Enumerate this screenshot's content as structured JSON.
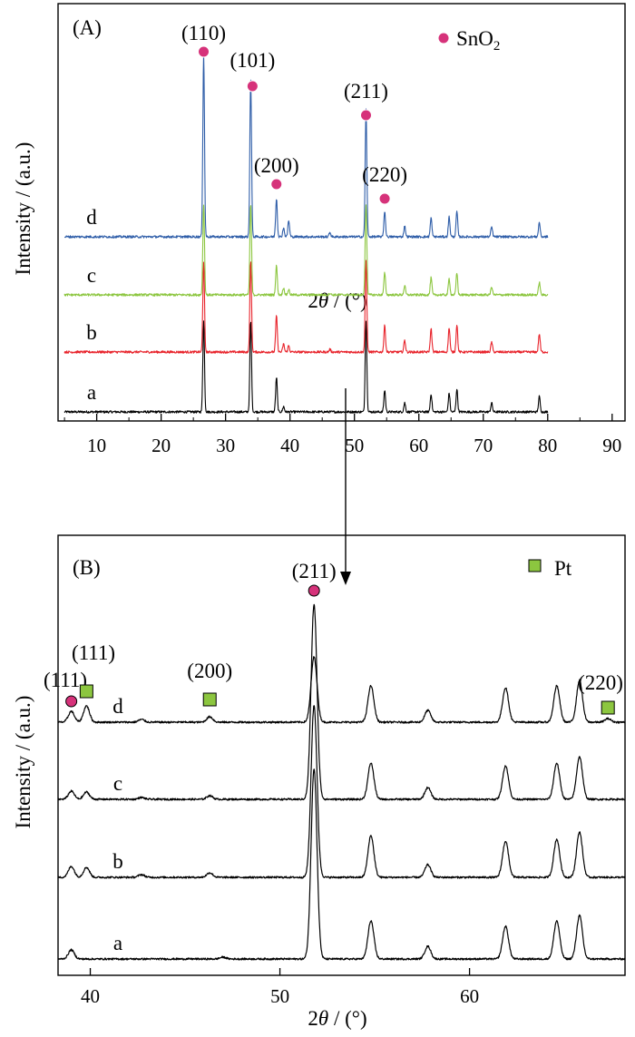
{
  "chart_data": [
    {
      "type": "line",
      "panel_label": "(A)",
      "xlabel_prefix": "2",
      "xlabel_symbol": "θ",
      "xlabel_suffix": " / (°)",
      "ylabel": "Intensity / (a.u.)",
      "xlim": [
        4,
        92
      ],
      "xticks": [
        10,
        20,
        30,
        40,
        50,
        60,
        70,
        80,
        90
      ],
      "data_range": [
        5,
        80
      ],
      "legend": {
        "text": "SnO",
        "sub": "2",
        "color": "#d6327a"
      },
      "peak_labels": [
        {
          "text": "(110)",
          "x": 26.6
        },
        {
          "text": "(101)",
          "x": 33.9
        },
        {
          "text": "(200)",
          "x": 37.9
        },
        {
          "text": "(211)",
          "x": 51.8
        },
        {
          "text": "(220)",
          "x": 54.7
        }
      ],
      "series": [
        {
          "name": "a",
          "color": "#000000",
          "peaks": [
            [
              26.6,
              100
            ],
            [
              33.9,
              100
            ],
            [
              37.9,
              38
            ],
            [
              39.0,
              6
            ],
            [
              51.8,
              100
            ],
            [
              54.7,
              24
            ],
            [
              57.8,
              10
            ],
            [
              61.9,
              20
            ],
            [
              64.7,
              21
            ],
            [
              65.9,
              25
            ],
            [
              71.3,
              10
            ],
            [
              78.7,
              17
            ]
          ]
        },
        {
          "name": "b",
          "color": "#e8232b",
          "peaks": [
            [
              26.6,
              100
            ],
            [
              33.9,
              100
            ],
            [
              37.9,
              40
            ],
            [
              39.0,
              9
            ],
            [
              39.8,
              7
            ],
            [
              46.2,
              3
            ],
            [
              51.8,
              100
            ],
            [
              54.7,
              29
            ],
            [
              57.8,
              13
            ],
            [
              61.9,
              26
            ],
            [
              64.7,
              27
            ],
            [
              65.9,
              30
            ],
            [
              71.3,
              11
            ],
            [
              78.7,
              20
            ]
          ]
        },
        {
          "name": "c",
          "color": "#8cc63f",
          "peaks": [
            [
              26.6,
              100
            ],
            [
              33.9,
              100
            ],
            [
              37.9,
              32
            ],
            [
              39.0,
              8
            ],
            [
              39.8,
              6
            ],
            [
              46.2,
              2
            ],
            [
              51.8,
              100
            ],
            [
              54.7,
              24
            ],
            [
              57.8,
              10
            ],
            [
              61.9,
              19
            ],
            [
              64.7,
              18
            ],
            [
              65.9,
              24
            ],
            [
              71.3,
              9
            ],
            [
              78.7,
              14
            ]
          ]
        },
        {
          "name": "d",
          "color": "#2e5da8",
          "peaks": [
            [
              26.6,
              202
            ],
            [
              33.9,
              175
            ],
            [
              37.9,
              42
            ],
            [
              39.0,
              10
            ],
            [
              39.8,
              18
            ],
            [
              46.2,
              5
            ],
            [
              51.8,
              140
            ],
            [
              54.7,
              28
            ],
            [
              57.8,
              12
            ],
            [
              61.9,
              21
            ],
            [
              64.7,
              22
            ],
            [
              65.9,
              28
            ],
            [
              71.3,
              11
            ],
            [
              78.7,
              16
            ]
          ]
        }
      ]
    },
    {
      "type": "line",
      "panel_label": "(B)",
      "xlabel_prefix": "2",
      "xlabel_symbol": "θ",
      "xlabel_suffix": " / (°)",
      "ylabel": "Intensity / (a.u.)",
      "xlim": [
        38.3,
        68.2
      ],
      "xticks": [
        40,
        50,
        60
      ],
      "legend": {
        "text": "Pt",
        "color": "#8cc63f"
      },
      "peak_labels": [
        {
          "text": "(111)",
          "x": 39.0,
          "marker": "circle"
        },
        {
          "text": "(111)",
          "x": 39.8,
          "marker": "square"
        },
        {
          "text": "(200)",
          "x": 46.3,
          "marker": "square"
        },
        {
          "text": "(211)",
          "x": 51.8,
          "marker": "circle"
        },
        {
          "text": "(220)",
          "x": 67.3,
          "marker": "square"
        }
      ],
      "series": [
        {
          "name": "a",
          "color": "#000000",
          "peaks": [
            [
              39.0,
              10
            ],
            [
              47.0,
              2
            ],
            [
              51.8,
              210
            ],
            [
              54.8,
              42
            ],
            [
              57.8,
              14
            ],
            [
              61.9,
              36
            ],
            [
              64.6,
              42
            ],
            [
              65.8,
              48
            ]
          ]
        },
        {
          "name": "b",
          "color": "#000000",
          "peaks": [
            [
              39.0,
              12
            ],
            [
              39.8,
              11
            ],
            [
              42.7,
              3
            ],
            [
              46.3,
              5
            ],
            [
              51.8,
              190
            ],
            [
              54.8,
              46
            ],
            [
              57.8,
              14
            ],
            [
              61.9,
              40
            ],
            [
              64.6,
              42
            ],
            [
              65.8,
              50
            ]
          ]
        },
        {
          "name": "c",
          "color": "#000000",
          "peaks": [
            [
              39.0,
              9
            ],
            [
              39.8,
              8
            ],
            [
              42.7,
              2
            ],
            [
              46.3,
              4
            ],
            [
              51.8,
              215
            ],
            [
              54.8,
              40
            ],
            [
              57.8,
              13
            ],
            [
              61.9,
              37
            ],
            [
              64.6,
              40
            ],
            [
              65.8,
              47
            ]
          ]
        },
        {
          "name": "d",
          "color": "#000000",
          "peaks": [
            [
              39.0,
              12
            ],
            [
              39.8,
              18
            ],
            [
              42.7,
              3
            ],
            [
              46.3,
              6
            ],
            [
              51.8,
              72
            ],
            [
              54.8,
              40
            ],
            [
              57.8,
              13
            ],
            [
              61.9,
              38
            ],
            [
              64.6,
              40
            ],
            [
              65.8,
              46
            ],
            [
              67.3,
              4
            ]
          ]
        }
      ]
    }
  ]
}
